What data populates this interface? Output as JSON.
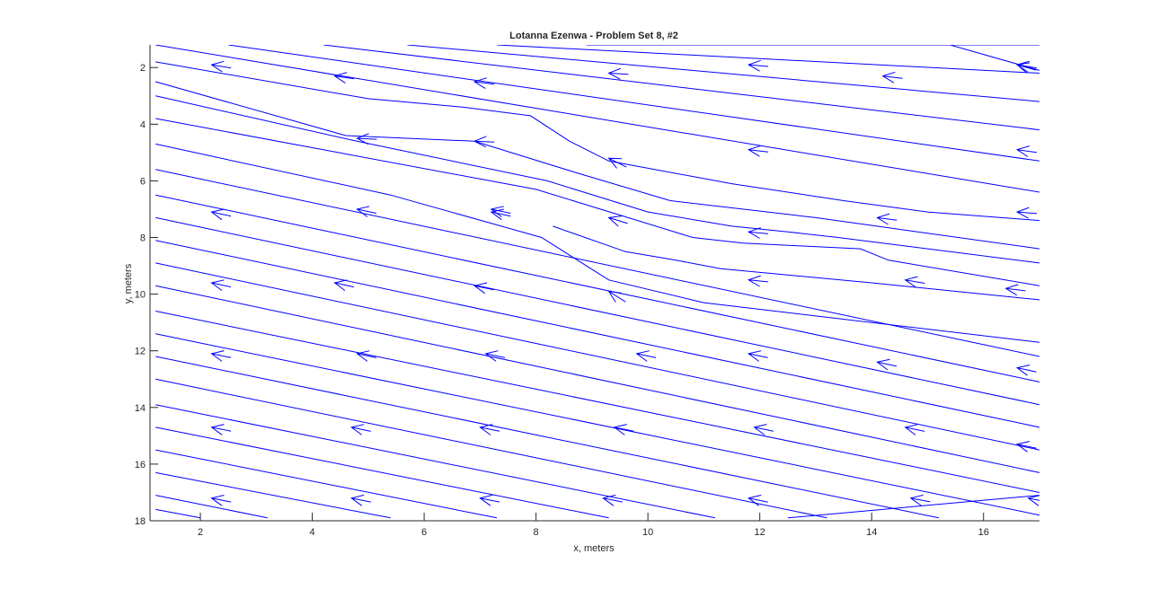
{
  "chart_data": {
    "type": "streamline",
    "title": "Lotanna Ezenwa - Problem Set 8, #2",
    "xlabel": "x, meters",
    "ylabel": "y, meters",
    "xlim": [
      1.1,
      17.0
    ],
    "ylim": [
      1.2,
      18.0
    ],
    "y_reversed": true,
    "xticks": [
      2,
      4,
      6,
      8,
      10,
      12,
      14,
      16
    ],
    "yticks": [
      2,
      4,
      6,
      8,
      10,
      12,
      14,
      16,
      18
    ],
    "grid": false,
    "line_color": "#0000ff",
    "flow_direction": "toward upper-left (decreasing x, decreasing y)",
    "streamlines": [
      {
        "points": [
          [
            1.2,
            1.2
          ],
          [
            17.0,
            6.4
          ]
        ],
        "arrows": [
          [
            2.2,
            1.9
          ],
          [
            16.6,
            1.9
          ]
        ]
      },
      {
        "points": [
          [
            2.5,
            1.2
          ],
          [
            17.0,
            5.3
          ]
        ],
        "arrows": [
          [
            4.4,
            2.3
          ],
          [
            16.6,
            4.9
          ]
        ]
      },
      {
        "points": [
          [
            4.2,
            1.2
          ],
          [
            17.0,
            4.2
          ]
        ],
        "arrows": [
          [
            14.2,
            2.3
          ]
        ]
      },
      {
        "points": [
          [
            5.7,
            1.2
          ],
          [
            17.0,
            3.2
          ]
        ],
        "arrows": [
          [
            11.8,
            1.9
          ]
        ]
      },
      {
        "points": [
          [
            7.3,
            1.2
          ],
          [
            17.0,
            2.2
          ]
        ],
        "arrows": [
          [
            9.3,
            2.2
          ]
        ]
      },
      {
        "points": [
          [
            8.9,
            1.2
          ],
          [
            17.0,
            1.2
          ]
        ],
        "arrows": []
      },
      {
        "points": [
          [
            15.4,
            1.2
          ],
          [
            17.0,
            2.1
          ]
        ],
        "arrows": [
          [
            16.6,
            1.9
          ]
        ]
      },
      {
        "points": [
          [
            1.2,
            1.8
          ],
          [
            5.0,
            3.1
          ],
          [
            6.7,
            3.4
          ],
          [
            7.9,
            3.7
          ],
          [
            8.6,
            4.6
          ],
          [
            9.3,
            5.3
          ],
          [
            11.5,
            6.1
          ],
          [
            13.5,
            6.7
          ],
          [
            15.0,
            7.1
          ],
          [
            17.0,
            7.4
          ]
        ],
        "arrows": [
          [
            6.9,
            2.5
          ],
          [
            9.3,
            5.2
          ],
          [
            16.6,
            7.1
          ]
        ]
      },
      {
        "points": [
          [
            1.2,
            2.5
          ],
          [
            4.6,
            4.4
          ],
          [
            6.9,
            4.6
          ],
          [
            8.7,
            5.7
          ],
          [
            10.4,
            6.7
          ],
          [
            13.0,
            7.3
          ],
          [
            17.0,
            8.4
          ]
        ],
        "arrows": [
          [
            4.8,
            4.5
          ],
          [
            6.9,
            4.6
          ],
          [
            11.8,
            4.9
          ]
        ]
      },
      {
        "points": [
          [
            1.2,
            3.0
          ],
          [
            4.8,
            4.6
          ],
          [
            8.2,
            6.0
          ],
          [
            10.0,
            7.1
          ],
          [
            11.5,
            7.6
          ],
          [
            12.5,
            7.8
          ],
          [
            13.4,
            8.0
          ],
          [
            17.0,
            8.9
          ]
        ],
        "arrows": [
          [
            7.2,
            7.0
          ],
          [
            9.3,
            7.3
          ],
          [
            11.8,
            7.8
          ],
          [
            14.1,
            7.3
          ]
        ]
      },
      {
        "points": [
          [
            1.2,
            3.8
          ],
          [
            8.0,
            6.3
          ],
          [
            10.8,
            8.0
          ],
          [
            11.7,
            8.2
          ],
          [
            13.8,
            8.4
          ],
          [
            14.3,
            8.8
          ],
          [
            17.0,
            9.7
          ]
        ],
        "arrows": [
          [
            14.6,
            9.5
          ]
        ]
      },
      {
        "points": [
          [
            1.2,
            4.7
          ],
          [
            5.4,
            6.5
          ],
          [
            8.1,
            8.0
          ],
          [
            9.3,
            9.5
          ],
          [
            11.0,
            10.3
          ],
          [
            17.0,
            11.7
          ]
        ],
        "arrows": [
          [
            9.3,
            9.9
          ],
          [
            16.4,
            9.8
          ]
        ]
      },
      {
        "points": [
          [
            8.3,
            7.6
          ],
          [
            9.6,
            8.5
          ],
          [
            10.5,
            8.8
          ],
          [
            11.3,
            9.1
          ],
          [
            14.0,
            9.6
          ],
          [
            17.0,
            10.2
          ]
        ],
        "arrows": [
          [
            11.8,
            9.5
          ]
        ]
      },
      {
        "points": [
          [
            1.2,
            5.6
          ],
          [
            17.0,
            12.2
          ]
        ],
        "arrows": [
          [
            2.2,
            7.1
          ],
          [
            4.8,
            7.0
          ],
          [
            7.2,
            7.1
          ],
          [
            9.8,
            12.1
          ]
        ]
      },
      {
        "points": [
          [
            1.2,
            6.5
          ],
          [
            17.0,
            13.1
          ]
        ],
        "arrows": [
          [
            11.8,
            12.1
          ]
        ]
      },
      {
        "points": [
          [
            1.2,
            7.3
          ],
          [
            17.0,
            13.9
          ]
        ],
        "arrows": [
          [
            4.4,
            9.6
          ],
          [
            14.1,
            12.4
          ],
          [
            16.6,
            12.6
          ]
        ]
      },
      {
        "points": [
          [
            1.2,
            8.1
          ],
          [
            17.0,
            14.7
          ]
        ],
        "arrows": [
          [
            6.9,
            9.7
          ]
        ]
      },
      {
        "points": [
          [
            1.2,
            8.9
          ],
          [
            17.0,
            15.5
          ]
        ],
        "arrows": [
          [
            2.2,
            9.6
          ]
        ]
      },
      {
        "points": [
          [
            1.2,
            9.7
          ],
          [
            17.0,
            16.3
          ]
        ],
        "arrows": [
          [
            4.8,
            12.1
          ],
          [
            7.1,
            12.1
          ],
          [
            14.6,
            14.7
          ]
        ]
      },
      {
        "points": [
          [
            1.2,
            10.6
          ],
          [
            17.0,
            17.0
          ]
        ],
        "arrows": [
          [
            11.9,
            14.7
          ],
          [
            16.6,
            15.3
          ]
        ]
      },
      {
        "points": [
          [
            1.2,
            11.4
          ],
          [
            17.0,
            17.8
          ]
        ],
        "arrows": [
          [
            2.2,
            12.1
          ]
        ]
      },
      {
        "points": [
          [
            1.2,
            12.2
          ],
          [
            15.2,
            17.9
          ]
        ],
        "arrows": [
          [
            9.4,
            14.7
          ]
        ]
      },
      {
        "points": [
          [
            1.2,
            13.0
          ],
          [
            13.2,
            17.9
          ]
        ],
        "arrows": [
          [
            4.7,
            14.7
          ],
          [
            11.8,
            17.2
          ],
          [
            16.8,
            17.2
          ]
        ]
      },
      {
        "points": [
          [
            1.2,
            13.9
          ],
          [
            11.2,
            17.9
          ]
        ],
        "arrows": [
          [
            7.0,
            14.7
          ]
        ]
      },
      {
        "points": [
          [
            1.2,
            14.7
          ],
          [
            9.3,
            17.9
          ]
        ],
        "arrows": [
          [
            2.2,
            14.7
          ],
          [
            9.2,
            17.2
          ]
        ]
      },
      {
        "points": [
          [
            1.2,
            15.5
          ],
          [
            7.3,
            17.9
          ]
        ],
        "arrows": [
          [
            4.7,
            17.2
          ],
          [
            7.0,
            17.2
          ]
        ]
      },
      {
        "points": [
          [
            1.2,
            16.3
          ],
          [
            5.4,
            17.9
          ]
        ],
        "arrows": [
          [
            14.7,
            17.2
          ]
        ]
      },
      {
        "points": [
          [
            1.2,
            17.1
          ],
          [
            3.2,
            17.9
          ]
        ],
        "arrows": [
          [
            2.2,
            17.2
          ]
        ]
      },
      {
        "points": [
          [
            1.2,
            17.6
          ],
          [
            2.0,
            17.9
          ]
        ],
        "arrows": []
      },
      {
        "points": [
          [
            12.5,
            17.9
          ],
          [
            17.0,
            17.1
          ]
        ],
        "arrows": []
      }
    ]
  }
}
